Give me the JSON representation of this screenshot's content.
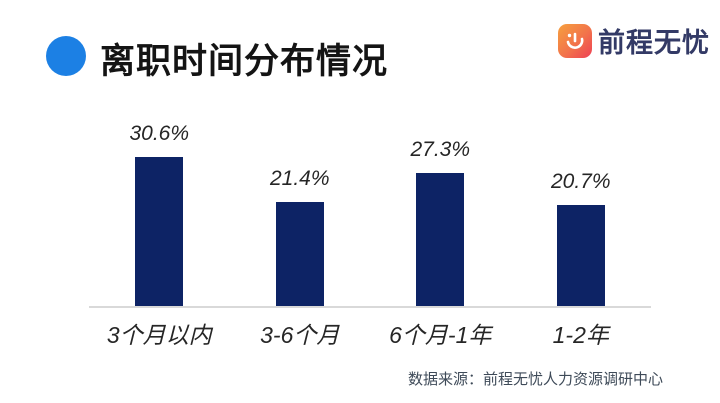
{
  "header": {
    "title": "离职时间分布情况",
    "bullet_color": "#1C80E4"
  },
  "logo": {
    "text": "前程无忧",
    "icon": "51job-hand-icon",
    "icon_gradient": [
      "#F6A03E",
      "#EE4054"
    ],
    "text_color": "#333A66"
  },
  "chart_data": {
    "type": "bar",
    "title": "离职时间分布情况",
    "categories": [
      "3个月以内",
      "3-6个月",
      "6个月-1年",
      "1-2年"
    ],
    "values": [
      30.6,
      21.4,
      27.3,
      20.7
    ],
    "value_labels": [
      "30.6%",
      "21.4%",
      "27.3%",
      "20.7%"
    ],
    "xlabel": "",
    "ylabel": "",
    "ylim": [
      0,
      35
    ],
    "unit": "%",
    "bar_color": "#0D2365",
    "axis_line_color": "#D9D9D9",
    "grid": false,
    "legend_position": "none",
    "value_label_position": "above-bar"
  },
  "source": {
    "text": "数据来源：前程无忧人力资源调研中心"
  }
}
